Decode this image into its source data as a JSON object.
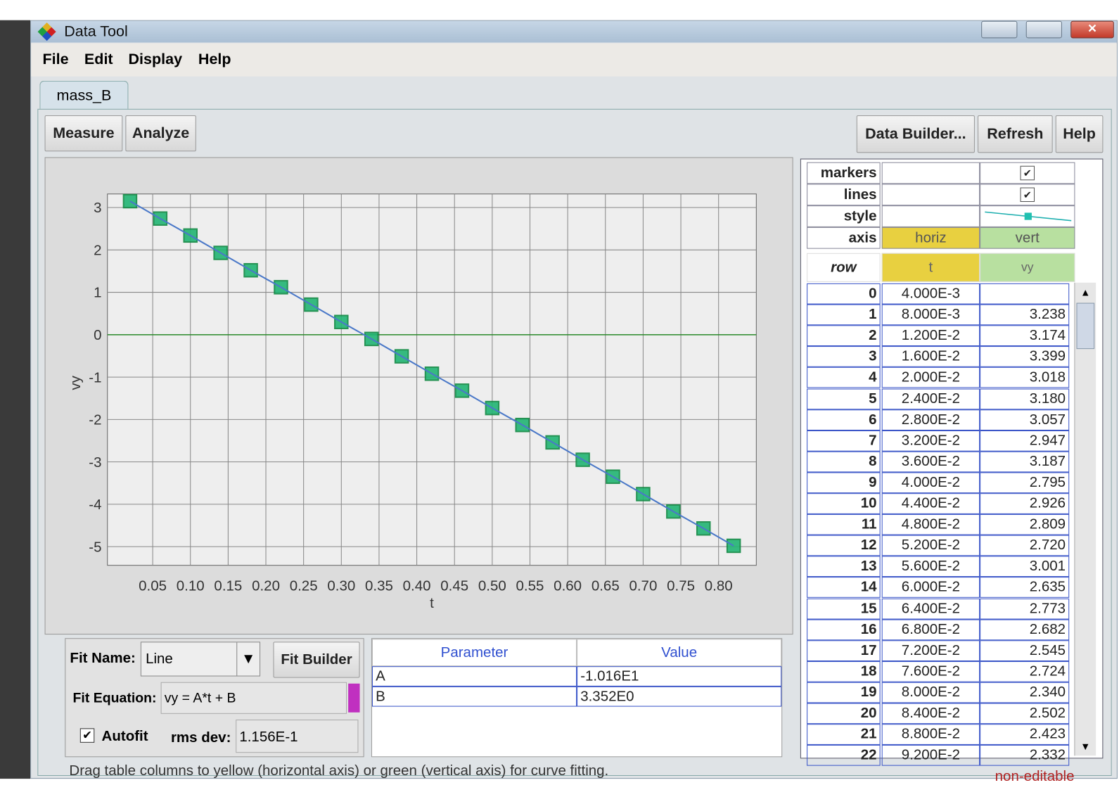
{
  "window": {
    "title": "Data Tool"
  },
  "menu": [
    "File",
    "Edit",
    "Display",
    "Help"
  ],
  "tab": "mass_B",
  "toolbar": {
    "left": [
      "Measure",
      "Analyze"
    ],
    "right": [
      "Data Builder...",
      "Refresh",
      "Help"
    ]
  },
  "chart_data": {
    "type": "scatter",
    "x_label": "t",
    "y_label": "vy",
    "color": "#22b573",
    "line_color": "#4a78c8",
    "markers": true,
    "lines": true,
    "grid": true,
    "x": [
      0.02,
      0.06,
      0.1,
      0.14,
      0.18,
      0.22,
      0.26,
      0.3,
      0.34,
      0.38,
      0.42,
      0.46,
      0.5,
      0.54,
      0.58,
      0.62,
      0.66,
      0.7,
      0.74,
      0.78,
      0.82
    ],
    "values": [
      3.15,
      2.74,
      2.34,
      1.93,
      1.52,
      1.12,
      0.71,
      0.3,
      -0.1,
      -0.51,
      -0.92,
      -1.32,
      -1.73,
      -2.13,
      -2.54,
      -2.95,
      -3.35,
      -3.76,
      -4.17,
      -4.57,
      -4.98
    ],
    "xlim": [
      -0.01,
      0.85
    ],
    "ylim": [
      -5.44,
      3.32
    ],
    "xticks": [
      0.05,
      {
        "value": 0.1,
        "label": "0.10"
      },
      0.15,
      {
        "value": 0.2,
        "label": "0.20"
      },
      0.25,
      {
        "value": 0.3,
        "label": "0.30"
      },
      0.35,
      {
        "value": 0.4,
        "label": "0.40"
      },
      0.45,
      {
        "value": 0.5,
        "label": "0.50"
      },
      0.55,
      {
        "value": 0.6,
        "label": "0.60"
      },
      0.65,
      {
        "value": 0.7,
        "label": "0.70"
      },
      0.75,
      {
        "value": 0.8,
        "label": "0.80"
      }
    ],
    "yticks": [
      3,
      2,
      1,
      0,
      -1,
      -2,
      -3,
      -4,
      -5
    ]
  },
  "column_settings": {
    "labels": [
      "markers",
      "lines",
      "style",
      "axis"
    ],
    "axis": [
      "horiz",
      "vert"
    ]
  },
  "table": {
    "header": [
      "row",
      "t",
      "vy"
    ],
    "rows": [
      [
        "0",
        "4.000E-3",
        null
      ],
      [
        "1",
        "8.000E-3",
        "3.238"
      ],
      [
        "2",
        "1.200E-2",
        "3.174"
      ],
      [
        "3",
        "1.600E-2",
        "3.399"
      ],
      [
        "4",
        "2.000E-2",
        "3.018"
      ],
      [
        "5",
        "2.400E-2",
        "3.180"
      ],
      [
        "6",
        "2.800E-2",
        "3.057"
      ],
      [
        "7",
        "3.200E-2",
        "2.947"
      ],
      [
        "8",
        "3.600E-2",
        "3.187"
      ],
      [
        "9",
        "4.000E-2",
        "2.795"
      ],
      [
        "10",
        "4.400E-2",
        "2.926"
      ],
      [
        "11",
        "4.800E-2",
        "2.809"
      ],
      [
        "12",
        "5.200E-2",
        "2.720"
      ],
      [
        "13",
        "5.600E-2",
        "3.001"
      ],
      [
        "14",
        "6.000E-2",
        "2.635"
      ],
      [
        "15",
        "6.400E-2",
        "2.773"
      ],
      [
        "16",
        "6.800E-2",
        "2.682"
      ],
      [
        "17",
        "7.200E-2",
        "2.545"
      ],
      [
        "18",
        "7.600E-2",
        "2.724"
      ],
      [
        "19",
        "8.000E-2",
        "2.340"
      ],
      [
        "20",
        "8.400E-2",
        "2.502"
      ],
      [
        "21",
        "8.800E-2",
        "2.423"
      ],
      [
        "22",
        "9.200E-2",
        "2.332"
      ]
    ]
  },
  "fit": {
    "name_label": "Fit Name:",
    "name": "Line",
    "builder": "Fit Builder",
    "equation_label": "Fit Equation:",
    "equation": "vy = A*t + B",
    "autofit": "Autofit",
    "rms_label": "rms dev:",
    "rms": "1.156E-1"
  },
  "parameters": {
    "header": [
      "Parameter",
      "Value"
    ],
    "rows": [
      [
        "A",
        "-1.016E1"
      ],
      [
        "B",
        "3.352E0"
      ]
    ]
  },
  "status": {
    "hint": "Drag table columns to yellow (horizontal axis) or green (vertical axis) for curve fitting.",
    "mode": "non-editable"
  }
}
